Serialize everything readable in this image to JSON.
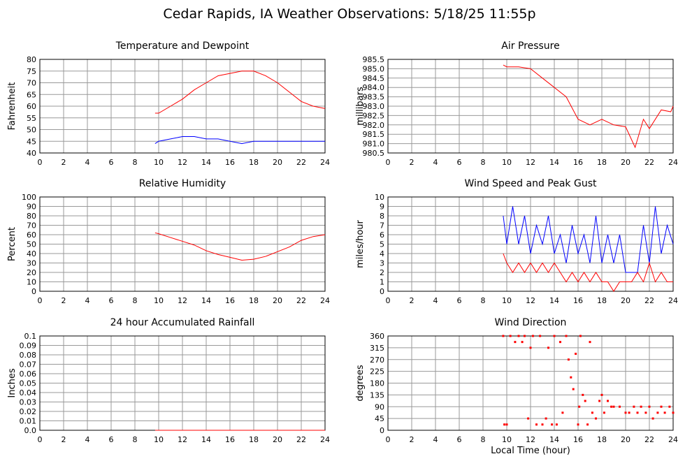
{
  "title": "Cedar Rapids, IA Weather Observations: 5/18/25 11:55p",
  "chart_data": [
    {
      "type": "line",
      "title": "Temperature and Dewpoint",
      "y_label": "Fahrenheit",
      "x": [
        9.7,
        10,
        11,
        12,
        13,
        14,
        15,
        16,
        17,
        18,
        19,
        20,
        21,
        22,
        23,
        24
      ],
      "series": [
        {
          "color": "#ff0000",
          "values": [
            57,
            57,
            60,
            63,
            67,
            70,
            73,
            74,
            75,
            75,
            73,
            70,
            66,
            62,
            60,
            59
          ]
        },
        {
          "color": "#0000ff",
          "values": [
            44,
            45,
            46,
            47,
            47,
            46,
            46,
            45,
            44,
            45,
            45,
            45,
            45,
            45,
            45,
            45
          ]
        }
      ],
      "xlim": [
        0,
        24
      ],
      "xticks": [
        0,
        2,
        4,
        6,
        8,
        10,
        12,
        14,
        16,
        18,
        20,
        22,
        24
      ],
      "ylim": [
        40,
        80
      ],
      "yticks": [
        40,
        45,
        50,
        55,
        60,
        65,
        70,
        75,
        80
      ],
      "grid": true
    },
    {
      "type": "line",
      "title": "Air Pressure",
      "y_label": "millibars",
      "x": [
        9.7,
        10,
        11,
        12,
        13,
        14,
        15,
        16,
        17,
        18,
        19,
        20,
        20.8,
        21.5,
        22,
        23,
        23.8,
        24
      ],
      "series": [
        {
          "color": "#ff0000",
          "values": [
            985.2,
            985.1,
            985.1,
            985.0,
            984.5,
            984.0,
            983.5,
            982.3,
            982.0,
            982.3,
            982.0,
            981.9,
            980.8,
            982.3,
            981.8,
            982.8,
            982.7,
            983.0
          ]
        }
      ],
      "xlim": [
        0,
        24
      ],
      "xticks": [
        0,
        2,
        4,
        6,
        8,
        10,
        12,
        14,
        16,
        18,
        20,
        22,
        24
      ],
      "ylim": [
        980.5,
        985.5
      ],
      "yticks": [
        980.5,
        {
          "value": 981,
          "label": "981.0"
        },
        981.5,
        {
          "value": 982,
          "label": "982.0"
        },
        982.5,
        {
          "value": 983,
          "label": "983.0"
        },
        983.5,
        {
          "value": 984,
          "label": "984.0"
        },
        984.5,
        {
          "value": 985,
          "label": "985.0"
        },
        985.5
      ],
      "grid": true
    },
    {
      "type": "line",
      "title": "Relative Humidity",
      "y_label": "Percent",
      "x": [
        9.7,
        10,
        11,
        12,
        13,
        14,
        15,
        16,
        17,
        18,
        19,
        20,
        21,
        22,
        23,
        24
      ],
      "series": [
        {
          "color": "#ff0000",
          "values": [
            62,
            61,
            57,
            53,
            49,
            43,
            39,
            36,
            33,
            34,
            37,
            42,
            47,
            54,
            58,
            60
          ]
        }
      ],
      "xlim": [
        0,
        24
      ],
      "xticks": [
        0,
        2,
        4,
        6,
        8,
        10,
        12,
        14,
        16,
        18,
        20,
        22,
        24
      ],
      "ylim": [
        0,
        100
      ],
      "yticks": [
        0,
        10,
        20,
        30,
        40,
        50,
        60,
        70,
        80,
        90,
        100
      ],
      "grid": true
    },
    {
      "type": "line",
      "title": "Wind Speed and Peak Gust",
      "y_label": "miles/hour",
      "x": [
        9.7,
        10,
        10.5,
        11,
        11.5,
        12,
        12.5,
        13,
        13.5,
        14,
        14.5,
        15,
        15.5,
        16,
        16.5,
        17,
        17.5,
        18,
        18.5,
        19,
        19.5,
        20,
        20.5,
        21,
        21.5,
        22,
        22.5,
        23,
        23.5,
        24
      ],
      "series": [
        {
          "color": "#0000ff",
          "values": [
            8,
            5,
            9,
            5,
            8,
            4,
            7,
            5,
            8,
            4,
            6,
            3,
            7,
            4,
            6,
            3,
            8,
            3,
            6,
            3,
            6,
            2,
            2,
            2,
            7,
            3,
            9,
            4,
            7,
            5
          ]
        },
        {
          "color": "#ff0000",
          "values": [
            4,
            3,
            2,
            3,
            2,
            3,
            2,
            3,
            2,
            3,
            2,
            1,
            2,
            1,
            2,
            1,
            2,
            1,
            1,
            0,
            1,
            1,
            1,
            2,
            1,
            3,
            1,
            2,
            1,
            1
          ]
        }
      ],
      "xlim": [
        0,
        24
      ],
      "xticks": [
        0,
        2,
        4,
        6,
        8,
        10,
        12,
        14,
        16,
        18,
        20,
        22,
        24
      ],
      "ylim": [
        0,
        10
      ],
      "yticks": [
        0,
        1,
        2,
        3,
        4,
        5,
        6,
        7,
        8,
        9,
        10
      ],
      "grid": true
    },
    {
      "type": "line",
      "title": "24 hour Accumulated Rainfall",
      "y_label": "Inches",
      "x": [
        9.7,
        24
      ],
      "series": [
        {
          "color": "#ff0000",
          "values": [
            0,
            0
          ]
        }
      ],
      "xlim": [
        0,
        24
      ],
      "xticks": [
        0,
        2,
        4,
        6,
        8,
        10,
        12,
        14,
        16,
        18,
        20,
        22,
        24
      ],
      "ylim": [
        0,
        0.1
      ],
      "yticks": [
        {
          "value": 0,
          "label": "0.0"
        },
        0.01,
        0.02,
        0.03,
        0.04,
        0.05,
        0.06,
        0.07,
        0.08,
        0.09,
        0.1
      ],
      "grid": true
    },
    {
      "type": "scatter",
      "title": "Wind Direction",
      "y_label": "degrees",
      "x_label": "Local Time (hour)",
      "x": [
        9.7,
        9.8,
        10,
        10.3,
        10.7,
        11,
        11.3,
        11.5,
        11.8,
        12,
        12.2,
        12.5,
        12.8,
        13,
        13.3,
        13.5,
        13.8,
        14,
        14.2,
        14.5,
        14.7,
        15,
        15.2,
        15.4,
        15.6,
        15.8,
        16,
        16.1,
        16.2,
        16.4,
        16.6,
        16.8,
        17,
        17.2,
        17.5,
        17.8,
        18,
        18.2,
        18.5,
        18.8,
        19,
        19.5,
        20,
        20.3,
        20.7,
        21,
        21.3,
        21.7,
        22,
        22.3,
        22.7,
        23,
        23.3,
        23.7,
        24
      ],
      "series": [
        {
          "color": "#ff0000",
          "values": [
            360,
            22,
            22,
            360,
            337,
            360,
            337,
            360,
            45,
            315,
            360,
            22,
            360,
            22,
            45,
            315,
            22,
            360,
            22,
            337,
            67,
            360,
            270,
            202,
            157,
            292,
            22,
            90,
            360,
            135,
            112,
            22,
            337,
            67,
            45,
            112,
            135,
            67,
            112,
            90,
            90,
            90,
            67,
            67,
            90,
            67,
            90,
            67,
            90,
            45,
            67,
            90,
            67,
            90,
            67
          ]
        }
      ],
      "xlim": [
        0,
        24
      ],
      "xticks": [
        0,
        2,
        4,
        6,
        8,
        10,
        12,
        14,
        16,
        18,
        20,
        22,
        24
      ],
      "ylim": [
        0,
        360
      ],
      "yticks": [
        0,
        45,
        90,
        135,
        180,
        225,
        270,
        315,
        360
      ],
      "grid": true
    }
  ]
}
